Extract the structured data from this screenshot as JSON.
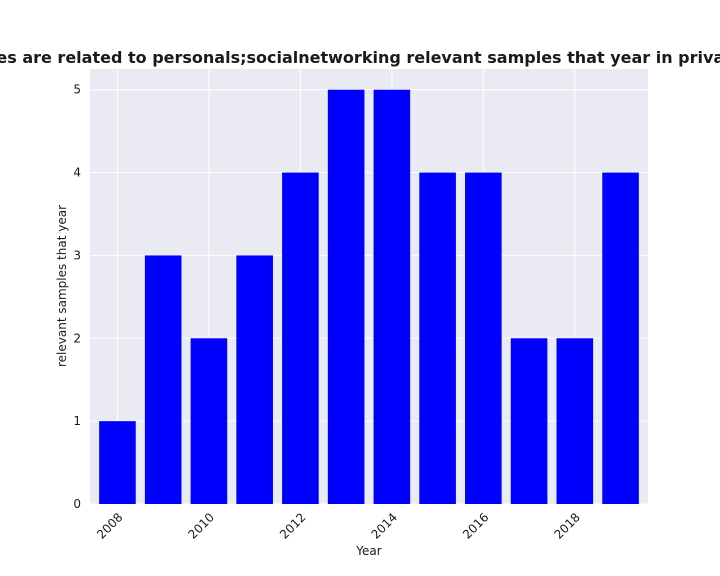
{
  "chart_data": {
    "type": "bar",
    "title": "Categories are related to personals;socialnetworking relevant samples that year in privacy policies",
    "xlabel": "Year",
    "ylabel": "relevant samples that year",
    "categories": [
      2008,
      2009,
      2010,
      2011,
      2012,
      2013,
      2014,
      2015,
      2016,
      2017,
      2018,
      2019
    ],
    "values": [
      1,
      3,
      2,
      3,
      4,
      5,
      5,
      4,
      4,
      2,
      2,
      4
    ],
    "x_tick_labels": [
      "2008",
      "2010",
      "2012",
      "2014",
      "2016",
      "2018"
    ],
    "x_tick_values": [
      2008,
      2010,
      2012,
      2014,
      2016,
      2018
    ],
    "y_ticks": [
      0,
      1,
      2,
      3,
      4,
      5
    ],
    "ylim": [
      0,
      5.25
    ],
    "xlim": [
      2007.4,
      2019.6
    ],
    "grid": true,
    "legend": "none",
    "colors": {
      "bar": "#0000ff",
      "plot_background": "#eaeaf2",
      "grid": "#ffffff"
    }
  }
}
